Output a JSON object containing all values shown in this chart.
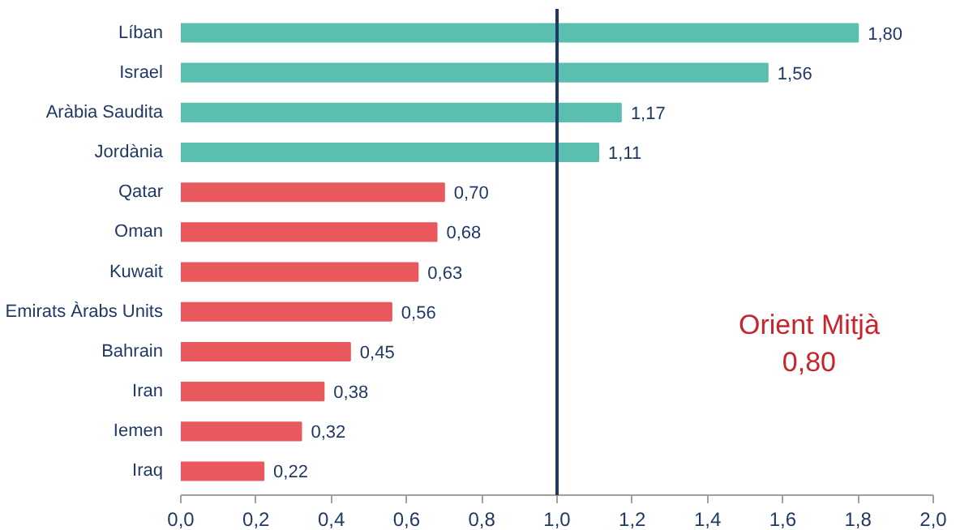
{
  "chart_data": {
    "type": "bar",
    "orientation": "horizontal",
    "categories": [
      "Líban",
      "Israel",
      "Aràbia Saudita",
      "Jordània",
      "Qatar",
      "Oman",
      "Kuwait",
      "Emirats Àrabs Units",
      "Bahrain",
      "Iran",
      "Iemen",
      "Iraq"
    ],
    "values": [
      1.8,
      1.56,
      1.17,
      1.11,
      0.7,
      0.68,
      0.63,
      0.56,
      0.45,
      0.38,
      0.32,
      0.22
    ],
    "value_labels": [
      "1,80",
      "1,56",
      "1,17",
      "1,11",
      "0,70",
      "0,68",
      "0,63",
      "0,56",
      "0,45",
      "0,38",
      "0,32",
      "0,22"
    ],
    "colors": [
      "#5bbfb0",
      "#5bbfb0",
      "#5bbfb0",
      "#5bbfb0",
      "#e8585c",
      "#e8585c",
      "#e8585c",
      "#e8585c",
      "#e8585c",
      "#e8585c",
      "#e8585c",
      "#e8585c"
    ],
    "xlim": [
      0,
      2.0
    ],
    "xticks": [
      {
        "value": 0,
        "label": "0,0"
      },
      {
        "value": 0.2,
        "label": "0,2"
      },
      {
        "value": 0.4,
        "label": "0,4"
      },
      {
        "value": 0.6,
        "label": "0,6"
      },
      {
        "value": 0.8,
        "label": "0,8"
      },
      {
        "value": 1.0,
        "label": "1,0"
      },
      {
        "value": 1.2,
        "label": "1,2"
      },
      {
        "value": 1.4,
        "label": "1,4"
      },
      {
        "value": 1.6,
        "label": "1,6"
      },
      {
        "value": 1.8,
        "label": "1,8"
      },
      {
        "value": 2.0,
        "label": "2,0"
      }
    ],
    "ref_lines": [
      {
        "axis": "x",
        "value": 1.0,
        "color": "#1f3864"
      }
    ],
    "annotations": [
      "Orient Mitjà\n0,80"
    ],
    "grid": false
  }
}
